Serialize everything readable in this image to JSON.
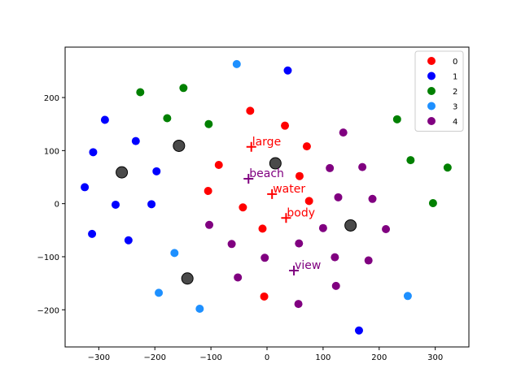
{
  "chart_data": {
    "type": "scatter",
    "title": "",
    "xlabel": "",
    "ylabel": "",
    "xlim": [
      -360,
      360
    ],
    "ylim": [
      -270,
      295
    ],
    "x_ticks": [
      -300,
      -200,
      -100,
      0,
      100,
      200,
      300
    ],
    "y_ticks": [
      -200,
      -100,
      0,
      100,
      200
    ],
    "x_tick_labels": [
      "−300",
      "−200",
      "−100",
      "0",
      "100",
      "200",
      "300"
    ],
    "y_tick_labels": [
      "−200",
      "−100",
      "0",
      "100",
      "200"
    ],
    "grid": false,
    "legend_position": "top-right",
    "series": [
      {
        "name": "0",
        "color": "#ff0000",
        "points": [
          [
            -30,
            175
          ],
          [
            32,
            147
          ],
          [
            71,
            108
          ],
          [
            -86,
            73
          ],
          [
            58,
            52
          ],
          [
            -105,
            24
          ],
          [
            75,
            5
          ],
          [
            -43,
            -7
          ],
          [
            -8,
            -47
          ],
          [
            -5,
            -175
          ]
        ]
      },
      {
        "name": "1",
        "color": "#0000ff",
        "points": [
          [
            37,
            251
          ],
          [
            -289,
            158
          ],
          [
            -234,
            118
          ],
          [
            -310,
            97
          ],
          [
            -197,
            61
          ],
          [
            -325,
            31
          ],
          [
            -270,
            -2
          ],
          [
            -206,
            -1
          ],
          [
            -312,
            -57
          ],
          [
            -247,
            -69
          ],
          [
            164,
            -239
          ]
        ]
      },
      {
        "name": "2",
        "color": "#008000",
        "points": [
          [
            -226,
            210
          ],
          [
            -149,
            218
          ],
          [
            -178,
            161
          ],
          [
            -104,
            150
          ],
          [
            232,
            159
          ],
          [
            256,
            82
          ],
          [
            322,
            68
          ],
          [
            296,
            1
          ]
        ]
      },
      {
        "name": "3",
        "color": "#1e90ff",
        "points": [
          [
            -54,
            263
          ],
          [
            -165,
            -93
          ],
          [
            -193,
            -168
          ],
          [
            -120,
            -198
          ],
          [
            251,
            -174
          ]
        ]
      },
      {
        "name": "4",
        "color": "#800080",
        "points": [
          [
            136,
            134
          ],
          [
            112,
            67
          ],
          [
            170,
            69
          ],
          [
            127,
            12
          ],
          [
            188,
            9
          ],
          [
            -103,
            -40
          ],
          [
            100,
            -46
          ],
          [
            212,
            -48
          ],
          [
            -63,
            -76
          ],
          [
            57,
            -75
          ],
          [
            -4,
            -102
          ],
          [
            121,
            -101
          ],
          [
            181,
            -107
          ],
          [
            -52,
            -139
          ],
          [
            123,
            -155
          ],
          [
            56,
            -189
          ]
        ]
      }
    ],
    "centroids": {
      "color": "#404040",
      "points": [
        [
          -157,
          109
        ],
        [
          15,
          76
        ],
        [
          -259,
          59
        ],
        [
          149,
          -41
        ],
        [
          -142,
          -141
        ]
      ]
    },
    "annotations": [
      {
        "text": "large",
        "x": -28,
        "y": 107,
        "color": "#ff0000"
      },
      {
        "text": "beach",
        "x": -33,
        "y": 47,
        "color": "#800080"
      },
      {
        "text": "water",
        "x": 9,
        "y": 18,
        "color": "#ff0000"
      },
      {
        "text": "body",
        "x": 34,
        "y": -27,
        "color": "#ff0000"
      },
      {
        "text": "view",
        "x": 48,
        "y": -126,
        "color": "#800080"
      }
    ]
  }
}
